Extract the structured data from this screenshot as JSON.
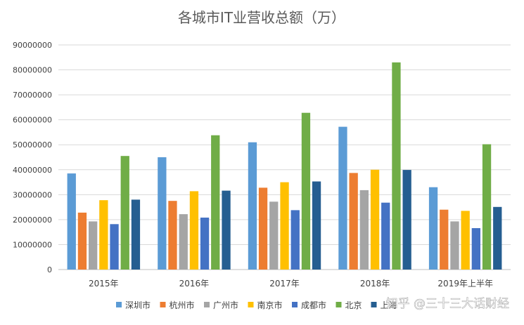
{
  "chart_data": {
    "type": "bar",
    "title": "各城市IT业营收总额（万）",
    "categories": [
      "2015年",
      "2016年",
      "2017年",
      "2018年",
      "2019年上半年"
    ],
    "ylim": [
      0,
      90000000
    ],
    "yticks": [
      0,
      10000000,
      20000000,
      30000000,
      40000000,
      50000000,
      60000000,
      70000000,
      80000000,
      90000000
    ],
    "grid": true,
    "legend_position": "bottom",
    "series": [
      {
        "name": "深圳市",
        "color": "#5b9bd5",
        "values": [
          38500000,
          45000000,
          51000000,
          57200000,
          33000000
        ]
      },
      {
        "name": "杭州市",
        "color": "#ed7d31",
        "values": [
          22800000,
          27500000,
          32800000,
          38700000,
          24000000
        ]
      },
      {
        "name": "广州市",
        "color": "#a5a5a5",
        "values": [
          19300000,
          22200000,
          27200000,
          31800000,
          19300000
        ]
      },
      {
        "name": "南京市",
        "color": "#ffc000",
        "values": [
          27800000,
          31400000,
          35000000,
          40000000,
          23500000
        ]
      },
      {
        "name": "成都市",
        "color": "#4472c4",
        "values": [
          18200000,
          20800000,
          23800000,
          26800000,
          16600000
        ]
      },
      {
        "name": "北京",
        "color": "#70ad47",
        "values": [
          45500000,
          53800000,
          62800000,
          83000000,
          50200000
        ]
      },
      {
        "name": "上海",
        "color": "#255e91",
        "values": [
          28000000,
          31600000,
          35300000,
          39900000,
          25100000
        ]
      }
    ]
  },
  "watermark": "知乎 @三十三大话财经"
}
